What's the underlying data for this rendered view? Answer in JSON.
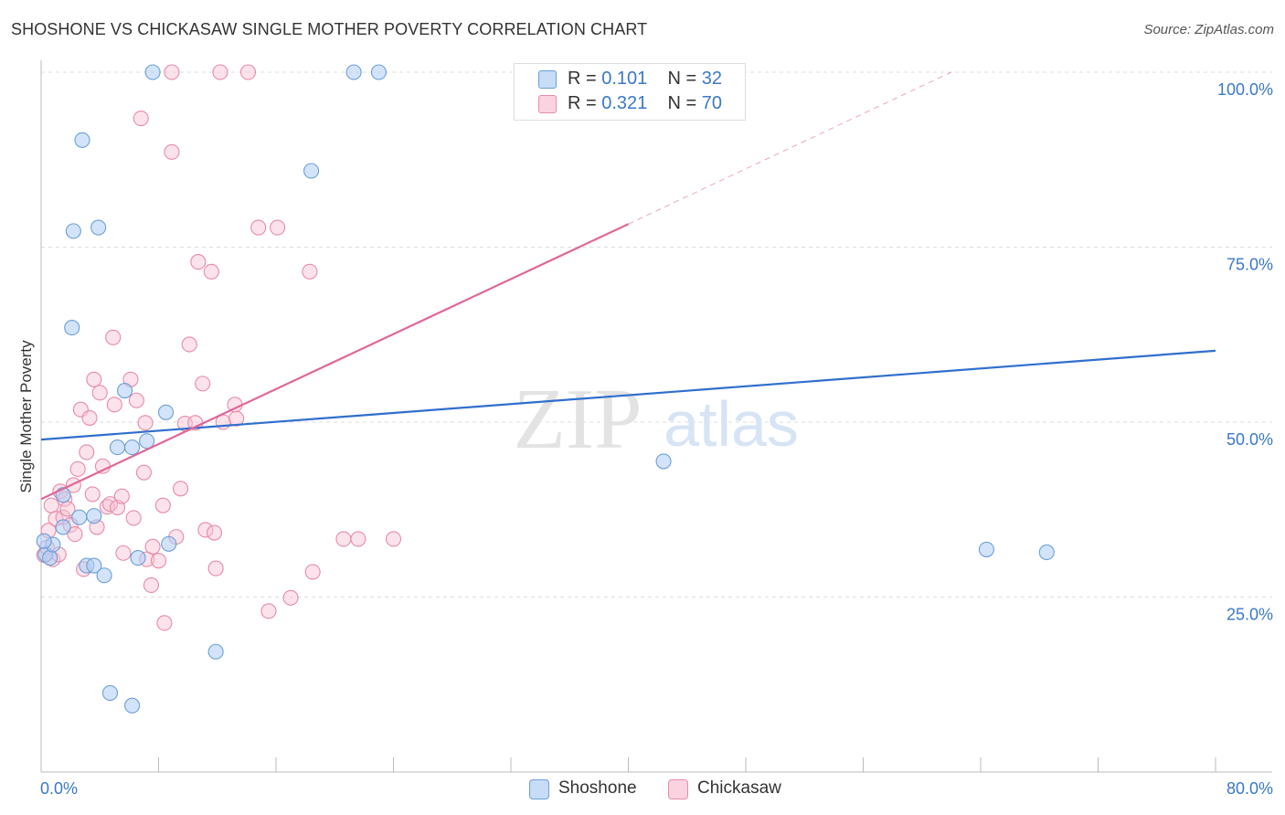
{
  "title": "SHOSHONE VS CHICKASAW SINGLE MOTHER POVERTY CORRELATION CHART",
  "source": "Source: ZipAtlas.com",
  "watermark": {
    "zip": "ZIP",
    "atlas": "atlas"
  },
  "legend_top": [
    {
      "r_label": "R =",
      "r_value": "0.101",
      "n_label": "N =",
      "n_value": "32"
    },
    {
      "r_label": "R =",
      "r_value": "0.321",
      "n_label": "N =",
      "n_value": "70"
    }
  ],
  "colors": {
    "shoshone_fill": "#aecdf5",
    "shoshone_stroke": "#6b9fd8",
    "shoshone_line": "#2f6fce",
    "chickasaw_fill": "#f8c1d2",
    "chickasaw_stroke": "#e88aa8",
    "chickasaw_line": "#e0679a",
    "axis_text": "#3a78c9",
    "grid": "#dddddd"
  },
  "chart_data": {
    "type": "scatter",
    "title": "SHOSHONE VS CHICKASAW SINGLE MOTHER POVERTY CORRELATION CHART",
    "xlabel": "",
    "ylabel": "Single Mother Poverty",
    "xlim": [
      0,
      80
    ],
    "ylim": [
      0,
      100
    ],
    "x_tick_labels": [
      "0.0%",
      "80.0%"
    ],
    "y_ticks": [
      25,
      50,
      75,
      100
    ],
    "y_tick_labels": [
      "25.0%",
      "50.0%",
      "75.0%",
      "100.0%"
    ],
    "grid": true,
    "legend_position": "bottom-center",
    "series": [
      {
        "name": "Shoshone",
        "r": 0.101,
        "n": 32,
        "trend": {
          "x": [
            0,
            80
          ],
          "y": [
            47.5,
            60.2
          ]
        },
        "points": [
          [
            0.3,
            31.1
          ],
          [
            0.6,
            30.6
          ],
          [
            0.8,
            32.5
          ],
          [
            1.5,
            39.6
          ],
          [
            1.5,
            35.0
          ],
          [
            2.1,
            63.5
          ],
          [
            2.2,
            77.3
          ],
          [
            2.6,
            36.4
          ],
          [
            2.8,
            90.3
          ],
          [
            3.1,
            29.5
          ],
          [
            3.6,
            36.6
          ],
          [
            3.6,
            29.5
          ],
          [
            3.9,
            77.8
          ],
          [
            4.3,
            28.1
          ],
          [
            4.7,
            11.3
          ],
          [
            5.2,
            46.4
          ],
          [
            5.7,
            54.5
          ],
          [
            6.2,
            9.5
          ],
          [
            6.2,
            46.4
          ],
          [
            6.6,
            30.6
          ],
          [
            7.2,
            47.3
          ],
          [
            7.6,
            100.0
          ],
          [
            8.5,
            51.4
          ],
          [
            8.7,
            32.6
          ],
          [
            11.9,
            17.2
          ],
          [
            18.4,
            85.9
          ],
          [
            21.3,
            100.0
          ],
          [
            23.0,
            100.0
          ],
          [
            42.4,
            44.4
          ],
          [
            64.4,
            31.8
          ],
          [
            68.5,
            31.4
          ],
          [
            0.2,
            33.0
          ]
        ]
      },
      {
        "name": "Chickasaw",
        "r": 0.321,
        "n": 70,
        "trend": {
          "x": [
            0,
            40
          ],
          "y": [
            39.0,
            78.3
          ]
        },
        "trend_dashed": {
          "x": [
            40,
            62
          ],
          "y": [
            78.3,
            100.0
          ]
        },
        "points": [
          [
            0.2,
            31.0
          ],
          [
            0.4,
            32.1
          ],
          [
            0.5,
            34.5
          ],
          [
            0.7,
            38.1
          ],
          [
            0.8,
            30.4
          ],
          [
            1.0,
            36.2
          ],
          [
            1.2,
            31.1
          ],
          [
            1.3,
            40.1
          ],
          [
            1.5,
            36.4
          ],
          [
            1.6,
            39.0
          ],
          [
            1.8,
            37.6
          ],
          [
            2.0,
            35.3
          ],
          [
            2.2,
            41.0
          ],
          [
            2.3,
            34.0
          ],
          [
            2.5,
            43.3
          ],
          [
            2.7,
            51.8
          ],
          [
            2.9,
            29.0
          ],
          [
            3.1,
            45.7
          ],
          [
            3.3,
            50.6
          ],
          [
            3.5,
            39.7
          ],
          [
            3.6,
            56.1
          ],
          [
            3.8,
            35.0
          ],
          [
            4.0,
            54.2
          ],
          [
            4.2,
            43.7
          ],
          [
            4.5,
            37.9
          ],
          [
            4.7,
            38.3
          ],
          [
            4.9,
            62.1
          ],
          [
            5.0,
            52.5
          ],
          [
            5.2,
            37.8
          ],
          [
            5.5,
            39.4
          ],
          [
            5.6,
            31.3
          ],
          [
            6.1,
            56.1
          ],
          [
            6.3,
            36.3
          ],
          [
            6.5,
            53.1
          ],
          [
            6.8,
            93.4
          ],
          [
            7.0,
            42.8
          ],
          [
            7.1,
            49.9
          ],
          [
            7.2,
            30.4
          ],
          [
            7.5,
            26.7
          ],
          [
            7.6,
            32.2
          ],
          [
            8.0,
            30.2
          ],
          [
            8.3,
            38.1
          ],
          [
            8.4,
            21.3
          ],
          [
            8.9,
            88.6
          ],
          [
            8.9,
            100.0
          ],
          [
            9.2,
            33.6
          ],
          [
            9.5,
            40.5
          ],
          [
            9.8,
            49.8
          ],
          [
            10.1,
            61.1
          ],
          [
            10.5,
            49.9
          ],
          [
            10.7,
            72.9
          ],
          [
            11.0,
            55.5
          ],
          [
            11.2,
            34.6
          ],
          [
            11.6,
            71.5
          ],
          [
            11.8,
            34.2
          ],
          [
            11.9,
            29.1
          ],
          [
            12.2,
            100.0
          ],
          [
            12.4,
            50.0
          ],
          [
            13.2,
            52.5
          ],
          [
            13.3,
            50.5
          ],
          [
            14.1,
            100.0
          ],
          [
            14.8,
            77.8
          ],
          [
            15.5,
            23.0
          ],
          [
            16.1,
            77.8
          ],
          [
            17.0,
            24.9
          ],
          [
            18.3,
            71.5
          ],
          [
            18.5,
            28.6
          ],
          [
            20.6,
            33.3
          ],
          [
            21.6,
            33.3
          ],
          [
            24.0,
            33.3
          ]
        ]
      }
    ]
  }
}
